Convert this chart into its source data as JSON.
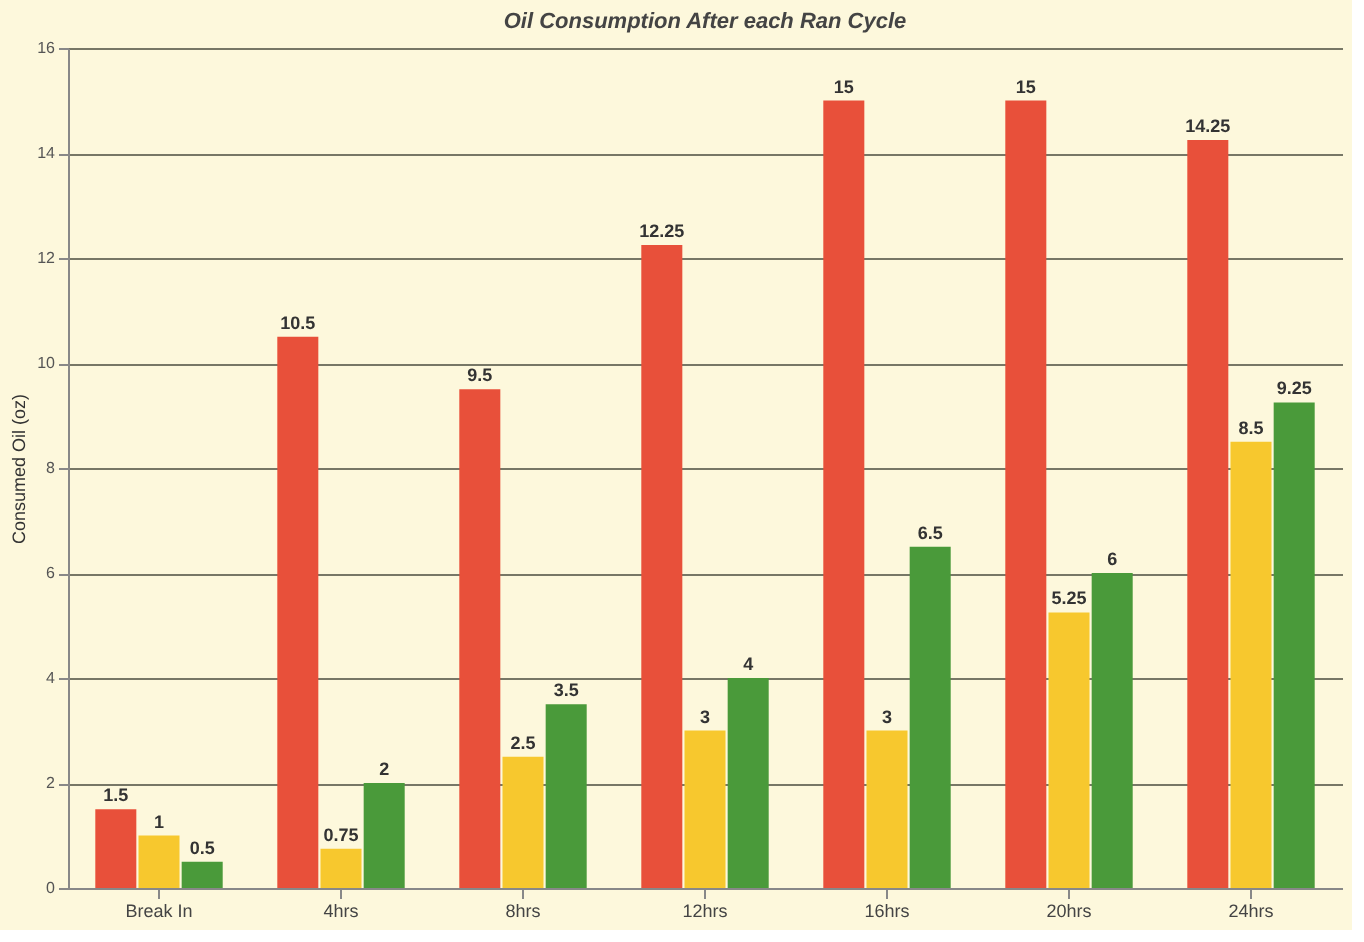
{
  "chart_data": {
    "type": "bar",
    "title": "Oil Consumption After each Ran Cycle",
    "ylabel": "Consumed Oil (oz)",
    "categories": [
      "Break In",
      "4hrs",
      "8hrs",
      "12hrs",
      "16hrs",
      "20hrs",
      "24hrs"
    ],
    "series": [
      {
        "color": "#e8503a",
        "values": [
          1.5,
          10.5,
          9.5,
          12.25,
          15,
          15,
          14.25
        ]
      },
      {
        "color": "#f7c82e",
        "values": [
          1,
          0.75,
          2.5,
          3,
          3,
          5.25,
          8.5
        ]
      },
      {
        "color": "#4a9a3a",
        "values": [
          0.5,
          2,
          3.5,
          4,
          6.5,
          6,
          9.25
        ]
      }
    ],
    "ylim": [
      0,
      16
    ],
    "yticks": [
      0,
      2,
      4,
      6,
      8,
      10,
      12,
      14,
      16
    ],
    "grid": "y",
    "data_labels": true
  }
}
